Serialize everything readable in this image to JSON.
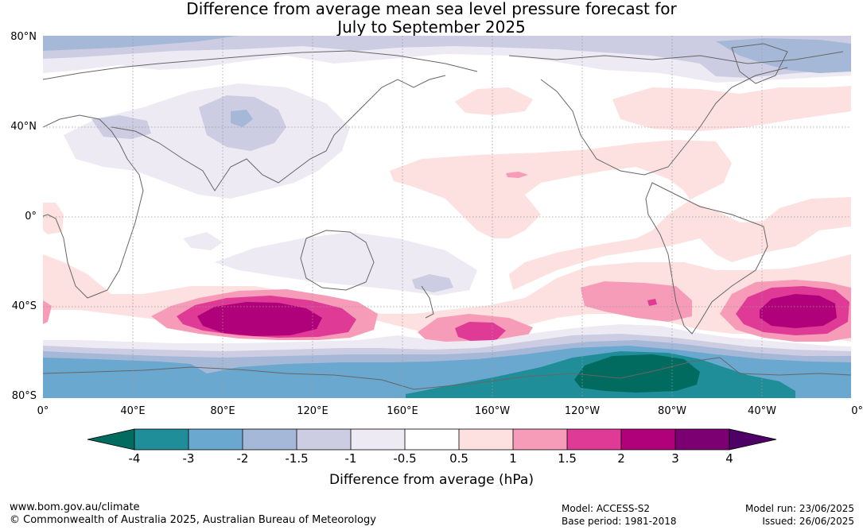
{
  "title_line1": "Difference from average mean sea level pressure forecast for",
  "title_line2": "July to September 2025",
  "lat_labels": [
    "80°N",
    "40°N",
    "0°",
    "40°S",
    "80°S"
  ],
  "lon_labels": [
    "0°",
    "40°E",
    "80°E",
    "120°E",
    "160°E",
    "160°W",
    "120°W",
    "80°W",
    "40°W",
    "0°"
  ],
  "colorbar": {
    "ticks": [
      "-4",
      "-3",
      "-2",
      "-1.5",
      "-1",
      "-0.5",
      "0.5",
      "1",
      "1.5",
      "2",
      "3",
      "4"
    ],
    "colors": [
      "#006b5e",
      "#1f8e99",
      "#6aa8cf",
      "#a6b8d8",
      "#cccde3",
      "#eeeaf3",
      "#ffffff",
      "#fde0e0",
      "#f79cb8",
      "#de3a96",
      "#b0007a",
      "#7c0072",
      "#4f0066"
    ],
    "label": "Difference from average (hPa)"
  },
  "footer": {
    "website": "www.bom.gov.au/climate",
    "copyright": "© Commonwealth of Australia 2025, Australian Bureau of Meteorology",
    "model": "Model: ACCESS-S2",
    "base_period": "Base period: 1981-2018",
    "model_run": "Model run: 23/06/2025",
    "issued": "Issued: 26/06/2025"
  }
}
